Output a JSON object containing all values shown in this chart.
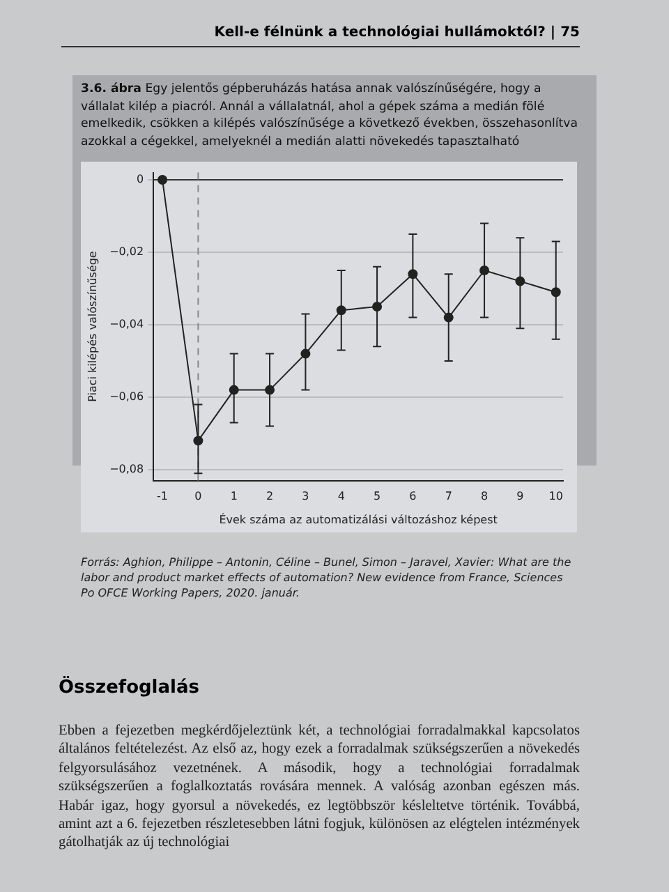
{
  "chart_data": {
    "type": "line",
    "title": "3.6. ábra",
    "subtitle": "Egy jelentős gépberuházás hatása annak valószínűségére, hogy a vállalat kilép a piacról. Annál a vállalatnál, ahol a gépek száma a medián fölé emelkedik, csökken a kilépés valószínűsége a következő években, összehasonlítva azokkal a cégekkel, amelyeknél a medián alatti növekedés tapasztalható",
    "xlabel": "Évek száma az automatizálási változáshoz képest",
    "ylabel": "Piaci kilépés valószínűsége",
    "x": [
      -1,
      0,
      1,
      2,
      3,
      4,
      5,
      6,
      7,
      8,
      9,
      10
    ],
    "series": [
      {
        "color": "#222222",
        "values": [
          0,
          -0.072,
          -0.058,
          -0.058,
          -0.048,
          -0.036,
          -0.035,
          -0.026,
          -0.038,
          -0.025,
          -0.028,
          -0.031
        ],
        "errors": [
          null,
          [
            -0.081,
            -0.062
          ],
          [
            -0.067,
            -0.048
          ],
          [
            -0.068,
            -0.048
          ],
          [
            -0.058,
            -0.037
          ],
          [
            -0.047,
            -0.025
          ],
          [
            -0.046,
            -0.024
          ],
          [
            -0.038,
            -0.015
          ],
          [
            -0.05,
            -0.026
          ],
          [
            -0.038,
            -0.012
          ],
          [
            -0.041,
            -0.016
          ],
          [
            -0.044,
            -0.017
          ]
        ]
      }
    ],
    "xlim": [
      -1.25,
      10.2
    ],
    "xticks": [
      -1,
      0,
      1,
      2,
      3,
      4,
      5,
      6,
      7,
      8,
      9,
      10
    ],
    "ylim": [
      -0.083,
      0.002
    ],
    "yticks": [
      {
        "value": -0.08,
        "label": "−0,08"
      },
      {
        "value": -0.06,
        "label": "−0,06"
      },
      {
        "value": -0.04,
        "label": "−0,04"
      },
      {
        "value": -0.02,
        "label": "−0,02"
      },
      0
    ],
    "grid": "y",
    "marker": "circle",
    "line_style": "solid",
    "legend": false,
    "ref_lines": [
      {
        "axis": "y",
        "value": 0,
        "color": "#333333",
        "line_style": "solid"
      },
      {
        "axis": "x",
        "value": 0,
        "color": "#888888",
        "line_style": "dashed"
      }
    ],
    "annotations": [
      "Kell-e félnünk a technológiai hullámoktól? | 75",
      "Forrás: Aghion, Philippe – Antonin, Céline – Bunel, Simon – Jaravel, Xavier: What are the labor and product market effects of automation? New evidence from France, Sciences Po OFCE Working Papers, 2020. január.",
      "Összefoglalás",
      "Ebben a fejezetben megkérdőjeleztünk két, a technológiai forradalmakkal kapcsolatos általános feltételezést. Az első az, hogy ezek a forradalmak szükségszerűen a növekedés felgyorsulásához vezetnének. A második, hogy a technológiai forradalmak szükségszerűen a foglalkoztatás rovására mennek. A valóság azonban egészen más. Habár igaz, hogy gyorsul a növekedés, ez legtöbbször késleltetve történik. Továbbá, amint azt a 6. fejezetben részletesebben látni fogjuk, különösen az elégtelen intézmények gátolhatják az új technológiai"
    ]
  }
}
